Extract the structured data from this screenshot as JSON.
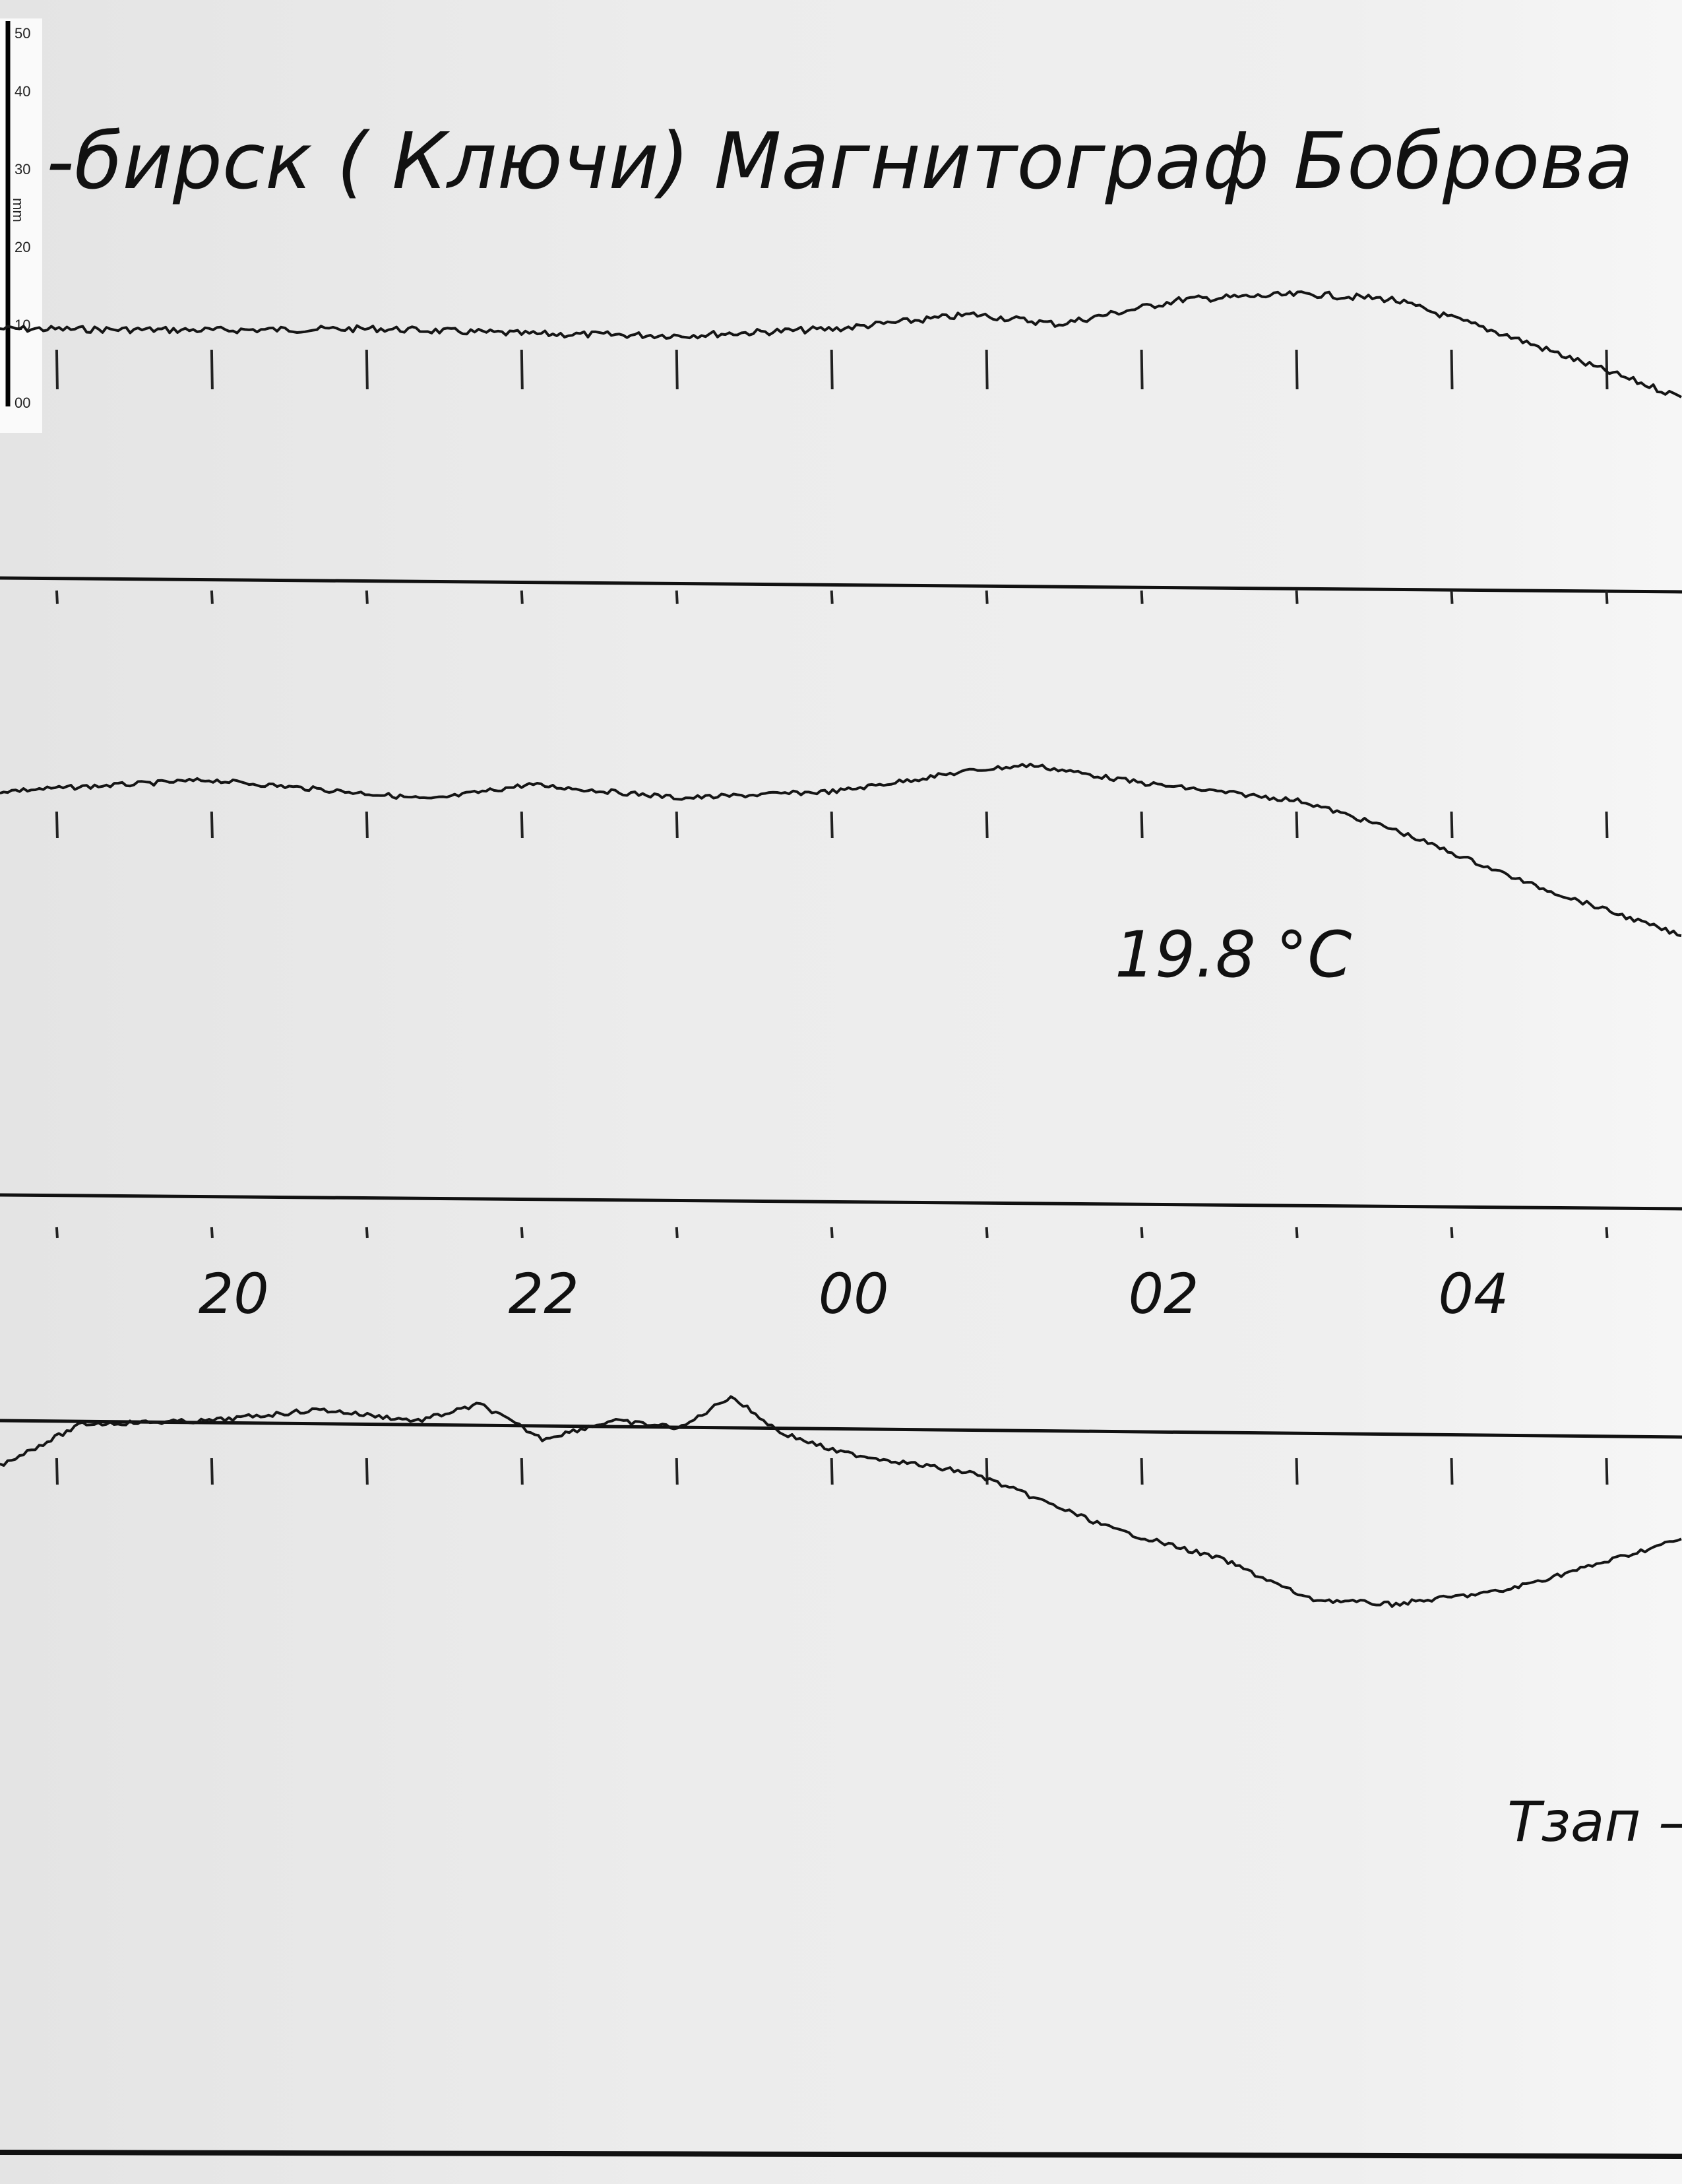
{
  "title": "-бирск ( Ключи)  Магнитограф Боброва",
  "temperature": "19.8 °C",
  "footer_note": "Tзап –",
  "ruler": {
    "unit": "mm",
    "labels": [
      "50",
      "40",
      "30",
      "20",
      "10",
      "00"
    ]
  },
  "colors": {
    "paper": "#ececec",
    "ink": "#111111"
  },
  "chart_data": {
    "type": "line",
    "title": "-бирск ( Ключи)  Магнитограф Боброва",
    "xlabel": "",
    "ylabel": "",
    "x_unit": "time (HH:MM)",
    "y_unit": "mm",
    "x_tick_labels": [
      "20",
      "22",
      "00",
      "02",
      "04"
    ],
    "xlim": [
      "18:38",
      "05:29"
    ],
    "hour_marks": [
      "19:00",
      "20:00",
      "21:00",
      "22:00",
      "23:00",
      "00:00",
      "01:00",
      "02:00",
      "03:00",
      "04:00",
      "05:00"
    ],
    "grid": false,
    "baselines": 2,
    "series": [
      {
        "x": [
          "18:38",
          "19:59",
          "21:04",
          "22:03",
          "23:02",
          "00:02",
          "00:55",
          "01:28",
          "02:16",
          "03:05",
          "03:37",
          "04:20",
          "04:58",
          "05:29"
        ],
        "y": [
          10.0,
          9.8,
          10.0,
          9.3,
          9.1,
          10.0,
          11.9,
          10.6,
          13.9,
          14.6,
          13.9,
          9.3,
          4.6,
          0.9
        ]
      },
      {
        "x": [
          "18:38",
          "19:59",
          "21:04",
          "21:25",
          "22:03",
          "23:02",
          "00:02",
          "00:55",
          "01:17",
          "02:00",
          "03:02",
          "03:37",
          "04:31",
          "05:29"
        ],
        "y": [
          -51.5,
          -50.0,
          -51.9,
          -52.6,
          -50.6,
          -52.4,
          -51.5,
          -48.7,
          -48.0,
          -50.4,
          -52.8,
          -56.5,
          -63.9,
          -70.7
        ]
      },
      {
        "x": [
          "18:38",
          "19:10",
          "19:59",
          "20:42",
          "21:20",
          "21:44",
          "22:08",
          "22:35",
          "23:02",
          "23:21",
          "23:40",
          "00:02",
          "00:55",
          "01:49",
          "02:32",
          "03:05",
          "03:37",
          "04:20",
          "04:53",
          "05:29"
        ],
        "y": [
          -141.1,
          -135.6,
          -135.2,
          -133.7,
          -135.2,
          -133.0,
          -137.6,
          -135.2,
          -136.1,
          -131.9,
          -136.7,
          -139.3,
          -142.2,
          -149.6,
          -153.7,
          -158.9,
          -159.6,
          -157.8,
          -154.6,
          -150.9
        ]
      }
    ]
  }
}
